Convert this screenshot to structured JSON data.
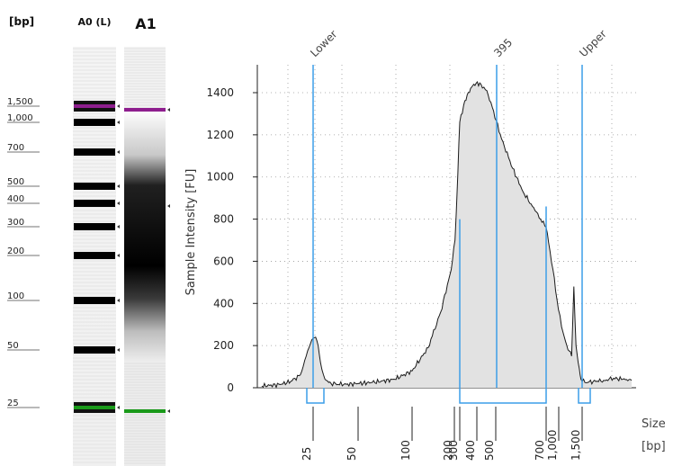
{
  "gel": {
    "unit_label": "[bp]",
    "lane_labels": [
      "A0 (L)",
      "A1"
    ],
    "ladder_sizes": [
      "1,500",
      "1,000",
      "700",
      "500",
      "400",
      "300",
      "200",
      "100",
      "50",
      "25"
    ],
    "upper_marker_color": "#8e1e8e",
    "lower_marker_color": "#1a9a1a"
  },
  "chart_data": {
    "type": "area",
    "ylabel": "Sample Intensity [FU]",
    "xlabel": "Size\n[bp]",
    "ylim": [
      0,
      1500
    ],
    "yticks": [
      0,
      200,
      400,
      600,
      800,
      1000,
      1200,
      1400
    ],
    "xticks": [
      "25",
      "50",
      "100",
      "200",
      "300",
      "400",
      "500",
      "700",
      "1,000",
      "1,500"
    ],
    "grid": true,
    "peak_labels": [
      "Lower",
      "395",
      "Upper"
    ],
    "region_bounds_bp": [
      300,
      700
    ],
    "curve": {
      "x_bp": [
        15,
        18,
        20,
        22,
        23,
        24,
        25,
        26,
        27,
        28,
        30,
        33,
        40,
        50,
        60,
        80,
        100,
        130,
        160,
        190,
        210,
        230,
        260,
        280,
        300,
        320,
        340,
        360,
        380,
        395,
        420,
        450,
        480,
        520,
        560,
        600,
        650,
        700,
        750,
        850,
        950,
        1050,
        1150,
        1250,
        1300,
        1350,
        1400,
        1430,
        1450,
        1470,
        1500,
        1550,
        1600,
        1700,
        1800,
        1900,
        2000
      ],
      "y": [
        8,
        15,
        30,
        60,
        130,
        190,
        235,
        240,
        200,
        120,
        40,
        20,
        15,
        20,
        25,
        40,
        80,
        190,
        360,
        560,
        700,
        830,
        1020,
        1160,
        1260,
        1340,
        1390,
        1420,
        1440,
        1445,
        1440,
        1410,
        1330,
        1180,
        1040,
        930,
        840,
        760,
        690,
        560,
        420,
        290,
        200,
        150,
        480,
        200,
        120,
        90,
        60,
        40,
        30,
        25,
        30,
        35,
        45,
        40,
        35
      ]
    },
    "colors": {
      "fill": "#e2e2e2",
      "line": "#1a1a1a",
      "markers": "#3c9ee8"
    }
  }
}
